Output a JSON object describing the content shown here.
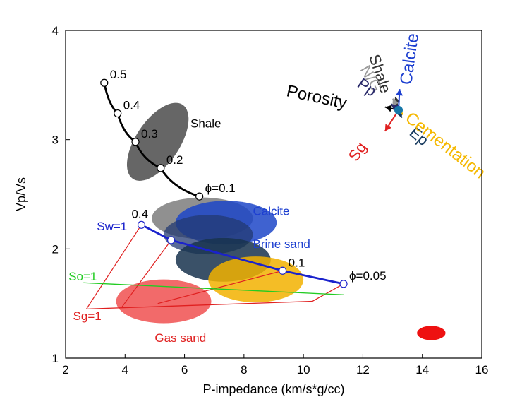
{
  "chart_data": {
    "type": "scatter",
    "xlabel": "P-impedance (km/s*g/cc)",
    "ylabel": "Vp/Vs",
    "xlim": [
      2,
      16
    ],
    "ylim": [
      1,
      4
    ],
    "xticks": [
      "2",
      "4",
      "6",
      "8",
      "10",
      "12",
      "14",
      "16"
    ],
    "yticks": [
      "1",
      "2",
      "3",
      "4"
    ],
    "grid": false,
    "colors": {
      "shale": "#000000",
      "brine": "#1a22cc",
      "oil": "#22cc22",
      "gas": "#e02020",
      "calcite": "#1f3fcc",
      "cementation": "#f5b800",
      "ep": "#173a5e",
      "pp": "#2a2a6a",
      "ng": "#999999",
      "vector_origin": "#1677a8"
    },
    "ellipses": [
      {
        "name": "Shale cluster",
        "cx": 5.1,
        "cy": 2.98,
        "rx": 1.5,
        "ry": 0.2,
        "angle": -56,
        "color": "#404040",
        "opacity": 0.8
      },
      {
        "name": "Shale gray",
        "cx": 6.6,
        "cy": 2.28,
        "rx": 1.7,
        "ry": 0.19,
        "angle": 0,
        "color": "#6b6b6b",
        "opacity": 0.75
      },
      {
        "name": "Calcite",
        "cx": 7.4,
        "cy": 2.24,
        "rx": 1.7,
        "ry": 0.2,
        "angle": 0,
        "color": "#1d46c8",
        "opacity": 0.85
      },
      {
        "name": "Brine sand",
        "cx": 6.8,
        "cy": 2.13,
        "rx": 1.5,
        "ry": 0.18,
        "angle": 0,
        "color": "#233a72",
        "opacity": 0.75
      },
      {
        "name": "Dark navy",
        "cx": 7.3,
        "cy": 1.9,
        "rx": 1.6,
        "ry": 0.2,
        "angle": 0,
        "color": "#17324e",
        "opacity": 0.85
      },
      {
        "name": "Yellow",
        "cx": 8.4,
        "cy": 1.72,
        "rx": 1.6,
        "ry": 0.21,
        "angle": 0,
        "color": "#f2b200",
        "opacity": 0.85
      },
      {
        "name": "Gas sand",
        "cx": 5.3,
        "cy": 1.52,
        "rx": 1.6,
        "ry": 0.2,
        "angle": 0,
        "color": "#f05050",
        "opacity": 0.85
      },
      {
        "name": "Red dot",
        "cx": 14.3,
        "cy": 1.23,
        "rx": 0.48,
        "ry": 0.065,
        "angle": 0,
        "color": "#ee1111",
        "opacity": 1
      }
    ],
    "series": [
      {
        "name": "Shale",
        "color": "#000000",
        "x": [
          3.3,
          3.75,
          4.35,
          5.2,
          6.5
        ],
        "y": [
          3.52,
          3.24,
          2.98,
          2.74,
          2.48
        ],
        "labels": [
          "0.5",
          "0.4",
          "0.3",
          "0.2",
          "ϕ=0.1"
        ]
      },
      {
        "name": "Brine sand",
        "color": "#1a22cc",
        "x": [
          4.55,
          5.55,
          9.3,
          11.35
        ],
        "y": [
          2.22,
          2.08,
          1.8,
          1.68
        ],
        "labels": [
          "0.4",
          "",
          "0.1",
          "ϕ=0.05"
        ]
      },
      {
        "name": "So=1",
        "color": "#22cc22",
        "x": [
          2.6,
          11.35
        ],
        "y": [
          1.69,
          1.58
        ]
      },
      {
        "name": "Sg=1",
        "color": "#e02020",
        "x": [
          2.7,
          10.3
        ],
        "y": [
          1.45,
          1.52
        ]
      }
    ],
    "fan_lines": [
      {
        "from": [
          4.55,
          2.22
        ],
        "to": [
          2.7,
          1.45
        ]
      },
      {
        "from": [
          5.55,
          2.08
        ],
        "to": [
          3.9,
          1.47
        ]
      },
      {
        "from": [
          9.3,
          1.8
        ],
        "to": [
          5.1,
          1.5
        ]
      },
      {
        "from": [
          11.35,
          1.68
        ],
        "to": [
          10.3,
          1.52
        ]
      }
    ],
    "annotations": [
      {
        "text": "Shale",
        "x": 6.2,
        "y": 3.11,
        "color": "#000000"
      },
      {
        "text": "Calcite",
        "x": 8.3,
        "y": 2.31,
        "color": "#1d3fd0"
      },
      {
        "text": "Brine sand",
        "x": 8.3,
        "y": 2.01,
        "color": "#1d3fd0"
      },
      {
        "text": "Sw=1",
        "x": 3.05,
        "y": 2.17,
        "color": "#1a22cc"
      },
      {
        "text": "So=1",
        "x": 2.1,
        "y": 1.71,
        "color": "#22cc22"
      },
      {
        "text": "Sg=1",
        "x": 2.25,
        "y": 1.35,
        "color": "#e02020"
      },
      {
        "text": "Gas sand",
        "x": 5.0,
        "y": 1.15,
        "color": "#e02020"
      }
    ],
    "vector_origin": [
      13.2,
      3.27
    ],
    "vectors": [
      {
        "label": "Porosity",
        "dx": -1.3,
        "dy": 0.08,
        "color": "#000000"
      },
      {
        "label": "Shale",
        "dx": -0.3,
        "dy": 0.35,
        "color": "#333333"
      },
      {
        "label": "N/G",
        "dx": -0.55,
        "dy": 0.3,
        "color": "#999999"
      },
      {
        "label": "Pp",
        "dx": -0.7,
        "dy": 0.16,
        "color": "#2a2a6a"
      },
      {
        "label": "Calcite",
        "dx": 0.1,
        "dy": 0.55,
        "color": "#1d3fd0"
      },
      {
        "label": "Sg",
        "dx": -1.3,
        "dy": -0.55,
        "color": "#e02020"
      },
      {
        "label": "Ep",
        "dx": 0.3,
        "dy": -0.2,
        "color": "#173a5e"
      },
      {
        "label": "Cementation",
        "dx": 0.45,
        "dy": -0.12,
        "color": "#f5b800"
      }
    ]
  }
}
